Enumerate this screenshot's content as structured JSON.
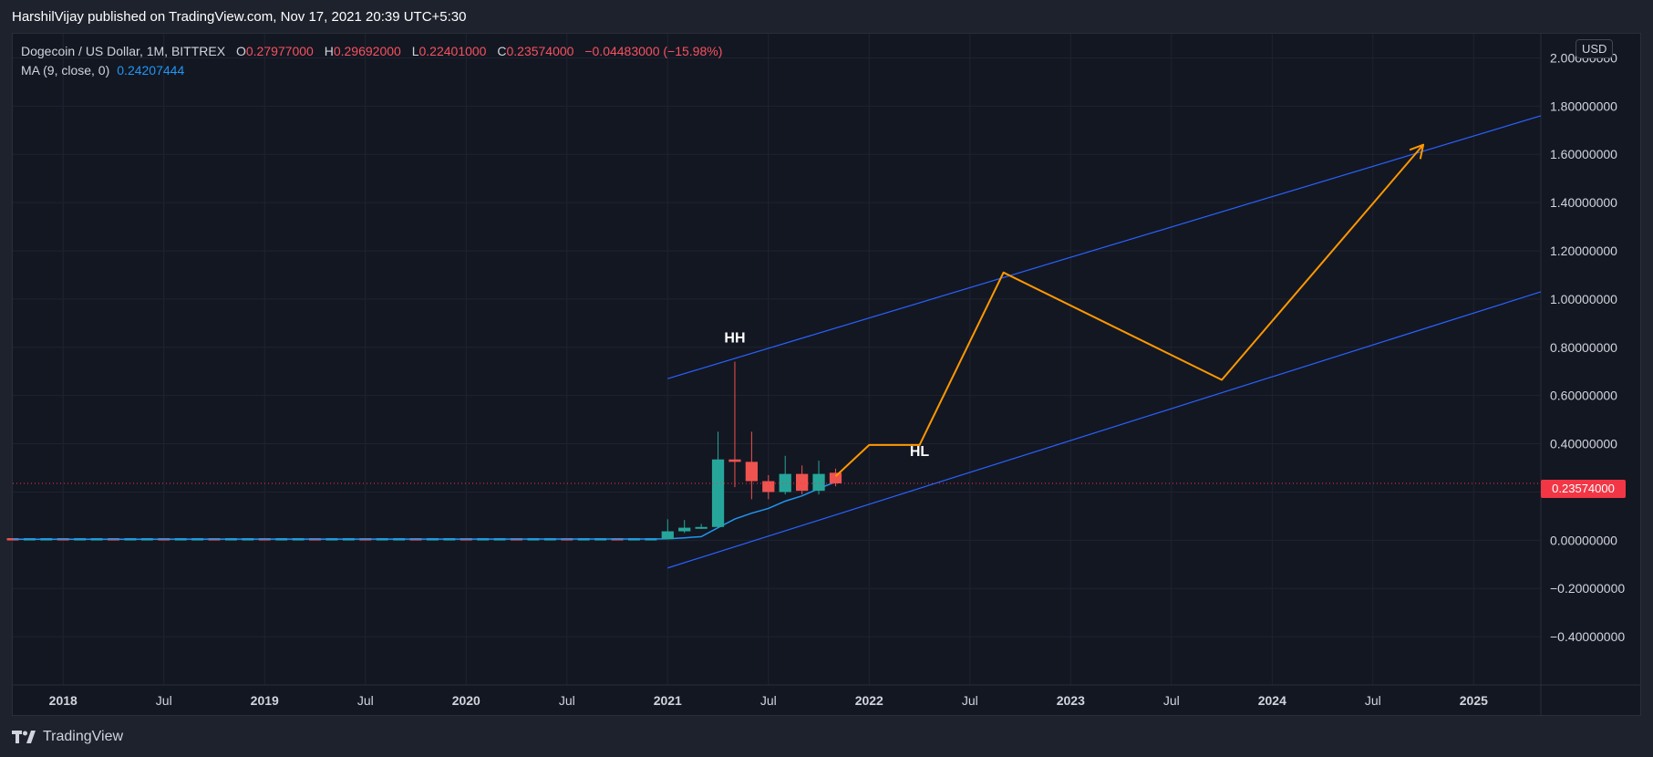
{
  "header": {
    "published_by": "HarshilVijay published on TradingView.com, Nov 17, 2021 20:39 UTC+5:30"
  },
  "legend": {
    "title": "Dogecoin / US Dollar, 1M, BITTREX",
    "o_label": "O",
    "o_value": "0.27977000",
    "h_label": "H",
    "h_value": "0.29692000",
    "l_label": "L",
    "l_value": "0.22401000",
    "c_label": "C",
    "c_value": "0.23574000",
    "change": "−0.04483000 (−15.98%)",
    "ma_label": "MA (9, close, 0)",
    "ma_value": "0.24207444"
  },
  "currency": "USD",
  "last_price": "0.23574000",
  "footer": {
    "brand": "TradingView"
  },
  "colors": {
    "up": "#26a69a",
    "down": "#ef5350",
    "ma": "#2196f3",
    "channel": "#2962ff",
    "projection": "#ff9800",
    "price_line": "#f23645",
    "background": "#131722",
    "grid": "#1f2330"
  },
  "chart_data": {
    "type": "candlestick",
    "title": "Dogecoin / US Dollar, 1M, BITTREX",
    "ylim": [
      -0.6,
      2.1
    ],
    "y_ticks": [
      -0.4,
      -0.2,
      0.0,
      0.2,
      0.4,
      0.6,
      0.8,
      1.0,
      1.2,
      1.4,
      1.6,
      1.8,
      2.0
    ],
    "y_tick_labels": [
      "−0.40000000",
      "−0.20000000",
      "0.00000000",
      "0.20000000",
      "0.40000000",
      "0.60000000",
      "0.80000000",
      "1.00000000",
      "1.20000000",
      "1.40000000",
      "1.60000000",
      "1.80000000",
      "2.00000000"
    ],
    "x_range": [
      "2017-10",
      "2025-05"
    ],
    "x_ticks": [
      {
        "date": "2018-01",
        "label": "2018",
        "bold": true
      },
      {
        "date": "2018-07",
        "label": "Jul",
        "bold": false
      },
      {
        "date": "2019-01",
        "label": "2019",
        "bold": true
      },
      {
        "date": "2019-07",
        "label": "Jul",
        "bold": false
      },
      {
        "date": "2020-01",
        "label": "2020",
        "bold": true
      },
      {
        "date": "2020-07",
        "label": "Jul",
        "bold": false
      },
      {
        "date": "2021-01",
        "label": "2021",
        "bold": true
      },
      {
        "date": "2021-07",
        "label": "Jul",
        "bold": false
      },
      {
        "date": "2022-01",
        "label": "2022",
        "bold": true
      },
      {
        "date": "2022-07",
        "label": "Jul",
        "bold": false
      },
      {
        "date": "2023-01",
        "label": "2023",
        "bold": true
      },
      {
        "date": "2023-07",
        "label": "Jul",
        "bold": false
      },
      {
        "date": "2024-01",
        "label": "2024",
        "bold": true
      },
      {
        "date": "2024-07",
        "label": "Jul",
        "bold": false
      },
      {
        "date": "2025-01",
        "label": "2025",
        "bold": true
      }
    ],
    "flat_period": {
      "start": "2017-10",
      "end": "2020-12",
      "price": 0.003
    },
    "candles": [
      {
        "date": "2021-01",
        "open": 0.0047,
        "high": 0.087,
        "low": 0.0047,
        "close": 0.037
      },
      {
        "date": "2021-02",
        "open": 0.037,
        "high": 0.084,
        "low": 0.03,
        "close": 0.052
      },
      {
        "date": "2021-03",
        "open": 0.052,
        "high": 0.068,
        "low": 0.047,
        "close": 0.055
      },
      {
        "date": "2021-04",
        "open": 0.055,
        "high": 0.45,
        "low": 0.053,
        "close": 0.335
      },
      {
        "date": "2021-05",
        "open": 0.335,
        "high": 0.74,
        "low": 0.22,
        "close": 0.325
      },
      {
        "date": "2021-06",
        "open": 0.325,
        "high": 0.45,
        "low": 0.17,
        "close": 0.245
      },
      {
        "date": "2021-07",
        "open": 0.245,
        "high": 0.27,
        "low": 0.17,
        "close": 0.2
      },
      {
        "date": "2021-08",
        "open": 0.2,
        "high": 0.35,
        "low": 0.19,
        "close": 0.275
      },
      {
        "date": "2021-09",
        "open": 0.275,
        "high": 0.31,
        "low": 0.19,
        "close": 0.205
      },
      {
        "date": "2021-10",
        "open": 0.205,
        "high": 0.33,
        "low": 0.19,
        "close": 0.275
      },
      {
        "date": "2021-11",
        "open": 0.27977,
        "high": 0.29692,
        "low": 0.22401,
        "close": 0.23574
      }
    ],
    "ma_series": [
      {
        "date": "2021-01",
        "value": 0.006
      },
      {
        "date": "2021-02",
        "value": 0.01
      },
      {
        "date": "2021-03",
        "value": 0.015
      },
      {
        "date": "2021-04",
        "value": 0.052
      },
      {
        "date": "2021-05",
        "value": 0.088
      },
      {
        "date": "2021-06",
        "value": 0.112
      },
      {
        "date": "2021-07",
        "value": 0.132
      },
      {
        "date": "2021-08",
        "value": 0.162
      },
      {
        "date": "2021-09",
        "value": 0.184
      },
      {
        "date": "2021-10",
        "value": 0.214
      },
      {
        "date": "2021-11",
        "value": 0.242
      }
    ],
    "channel_upper": [
      {
        "date": "2021-01",
        "value": 0.67
      },
      {
        "date": "2025-05",
        "value": 1.76
      }
    ],
    "channel_lower": [
      {
        "date": "2021-01",
        "value": -0.115
      },
      {
        "date": "2025-05",
        "value": 1.03
      }
    ],
    "projection": [
      {
        "date": "2021-11",
        "value": 0.265
      },
      {
        "date": "2022-01",
        "value": 0.395
      },
      {
        "date": "2022-04",
        "value": 0.395
      },
      {
        "date": "2022-09",
        "value": 1.11
      },
      {
        "date": "2023-10",
        "value": 0.665
      },
      {
        "date": "2024-10",
        "value": 1.64
      }
    ],
    "annotations": [
      {
        "text": "HH",
        "date": "2021-05",
        "value": 0.82
      },
      {
        "text": "HL",
        "date": "2022-04",
        "value": 0.35
      }
    ],
    "last_price": 0.23574
  }
}
